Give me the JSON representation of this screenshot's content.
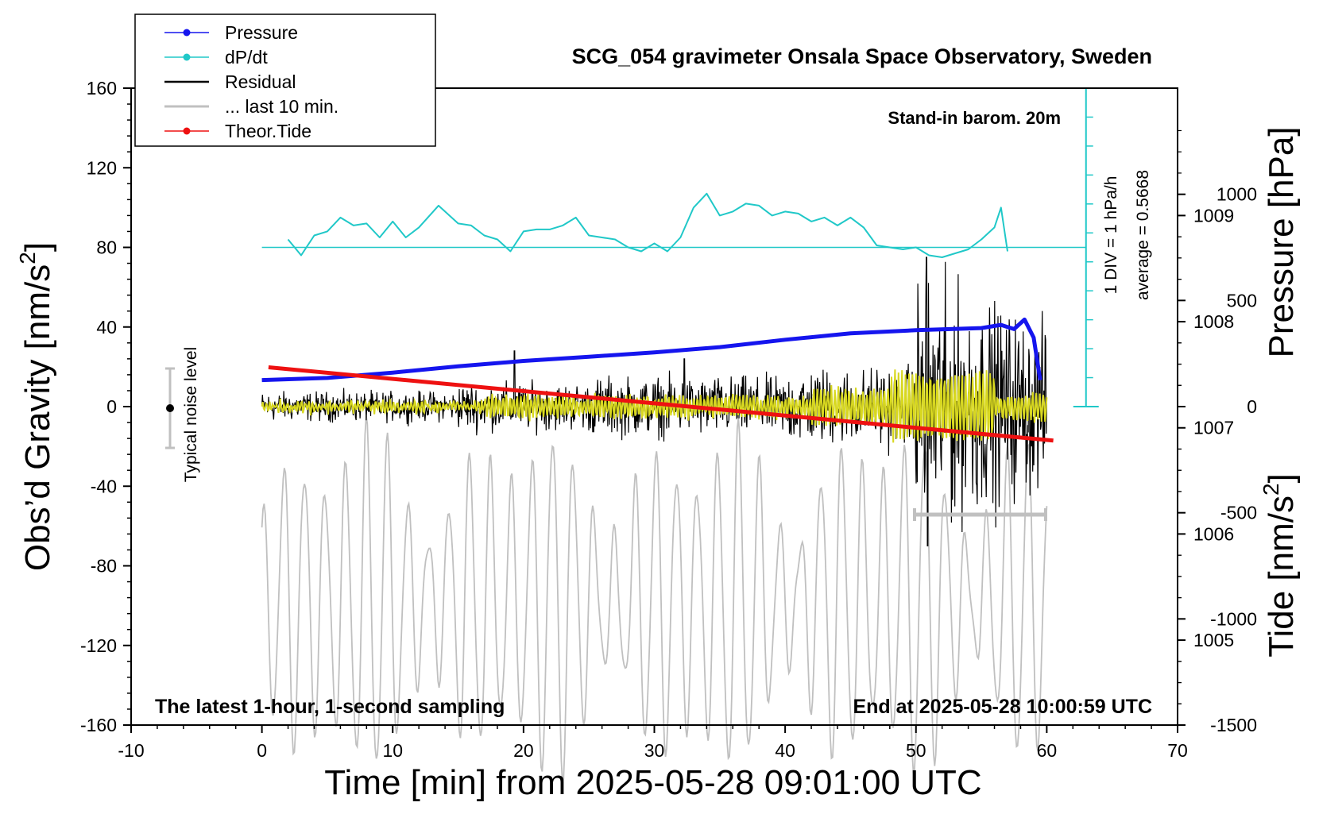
{
  "chart_data": {
    "type": "line",
    "title": "SCG_054 gravimeter Onsala Space Observatory, Sweden",
    "xlabel": "Time [min] from 2025-05-28 09:01:00 UTC",
    "ylabel_left": "Obs’d Gravity [nm/s",
    "ylabel_left_sup": "2",
    "ylabel_left_end": "]",
    "ylabel_right_top": "Pressure [hPa]",
    "ylabel_right_bottom": "Tide [nm/s",
    "ylabel_right_bottom_sup": "2",
    "ylabel_right_bottom_end": "]",
    "xlim": [
      -10,
      70
    ],
    "ylim": [
      -160,
      160
    ],
    "x_ticks": [
      "-10",
      "0",
      "10",
      "20",
      "30",
      "40",
      "50",
      "60",
      "70"
    ],
    "y_ticks": [
      "160",
      "120",
      "80",
      "40",
      "0",
      "-40",
      "-80",
      "-120",
      "-160"
    ],
    "pressure_axis": {
      "ticks": [
        "1009",
        "1008",
        "1007",
        "1006",
        "1005"
      ],
      "range_hPa": [
        1004.2,
        1010.2
      ]
    },
    "tide_axis": {
      "ticks": [
        "1000",
        "500",
        "0",
        "-500",
        "-1000",
        "-1500"
      ],
      "range": [
        -1500,
        1500
      ]
    },
    "annotations": {
      "stand_in": "Stand-in barom. 20m",
      "div_label": "1 DIV = 1 hPa/h",
      "average_label": "average = 0.5668",
      "noise_label": "Typical noise level",
      "latest": "The latest 1-hour, 1-second sampling",
      "end_at": "End at 2025-05-28 10:00:59 UTC"
    },
    "legend": [
      {
        "name": "Pressure",
        "color": "#1515ee",
        "marker": true
      },
      {
        "name": "dP/dt",
        "color": "#20c8c8",
        "marker": true
      },
      {
        "name": "Residual",
        "color": "#000000",
        "marker": false
      },
      {
        "name": "... last 10 min.",
        "color": "#c0c0c0",
        "marker": false
      },
      {
        "name": "Theor.Tide",
        "color": "#ee1111",
        "marker": true
      }
    ],
    "series": [
      {
        "name": "Pressure",
        "units": "hPa",
        "color": "#1515ee",
        "x": [
          0,
          5,
          10,
          15,
          20,
          25,
          30,
          35,
          40,
          45,
          50,
          55,
          56.5,
          57.5,
          58.3,
          59,
          59.5
        ],
        "y": [
          1007.45,
          1007.47,
          1007.52,
          1007.58,
          1007.63,
          1007.67,
          1007.71,
          1007.76,
          1007.83,
          1007.89,
          1007.92,
          1007.94,
          1007.97,
          1007.93,
          1008.02,
          1007.85,
          1007.45
        ]
      },
      {
        "name": "dP/dt",
        "units": "nm/s2 scale",
        "color": "#20c8c8",
        "baseline": 80,
        "x": [
          2,
          3,
          4,
          5,
          6,
          7,
          8,
          9,
          10,
          11,
          12,
          13.5,
          15,
          16,
          17,
          18,
          19,
          20,
          21,
          22,
          23,
          24,
          25,
          26,
          27,
          28,
          29,
          30,
          31,
          32,
          33,
          34,
          35,
          36,
          37,
          38,
          39,
          40,
          41,
          42,
          43,
          44,
          45,
          46,
          47,
          48,
          49,
          50,
          51,
          52,
          53,
          54,
          55,
          56,
          56.5,
          57
        ],
        "y": [
          84,
          76,
          86,
          88,
          95,
          91,
          92,
          85,
          93,
          85,
          90,
          101,
          92,
          91,
          86,
          84,
          78,
          88,
          89,
          89,
          91,
          95,
          86,
          85,
          84,
          80,
          78,
          82,
          78,
          85,
          100,
          107,
          96,
          98,
          102,
          101,
          96,
          98,
          97,
          93,
          95,
          91,
          95,
          90,
          81,
          80,
          79,
          80,
          76,
          75,
          77,
          79,
          84,
          90,
          100,
          78
        ]
      },
      {
        "name": "Theor.Tide",
        "units": "nm/s2",
        "color": "#ee1111",
        "x": [
          0.5,
          60.5
        ],
        "y": [
          185,
          -160
        ]
      }
    ]
  }
}
